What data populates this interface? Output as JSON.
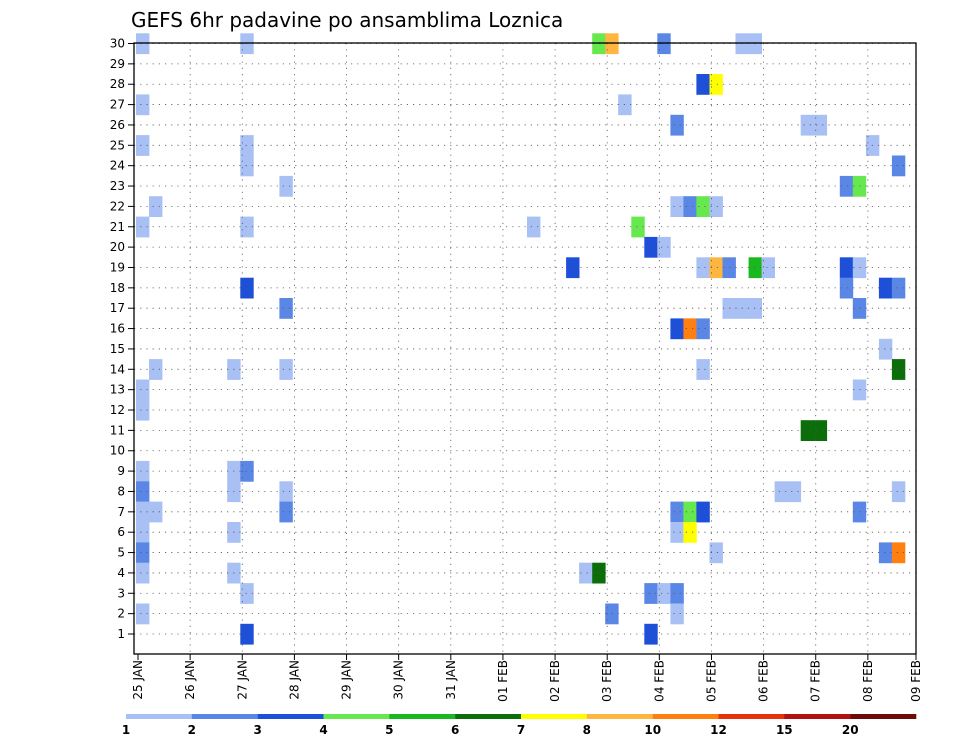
{
  "chart_data": {
    "type": "heatmap",
    "title": "GEFS 6hr padavine po ansamblima Loznica",
    "xlabel": "",
    "ylabel": "",
    "x_tick_labels": [
      "25 JAN",
      "26 JAN",
      "27 JAN",
      "28 JAN",
      "29 JAN",
      "30 JAN",
      "31 JAN",
      "01 FEB",
      "02 FEB",
      "03 FEB",
      "04 FEB",
      "05 FEB",
      "06 FEB",
      "07 FEB",
      "08 FEB",
      "09 FEB"
    ],
    "x_range_days": [
      0,
      15
    ],
    "x_step_hours": 6,
    "y_tick_labels": [
      "1",
      "2",
      "3",
      "4",
      "5",
      "6",
      "7",
      "8",
      "9",
      "10",
      "11",
      "12",
      "13",
      "14",
      "15",
      "16",
      "17",
      "18",
      "19",
      "20",
      "21",
      "22",
      "23",
      "24",
      "25",
      "26",
      "27",
      "28",
      "29",
      "30"
    ],
    "y_range": [
      1,
      30
    ],
    "grid": true,
    "colorbar": {
      "labels": [
        "1",
        "2",
        "3",
        "4",
        "5",
        "6",
        "7",
        "8",
        "10",
        "12",
        "15",
        "20"
      ],
      "colors": [
        "#a8c0f4",
        "#5a87e6",
        "#1d4fd8",
        "#66e84e",
        "#19b81f",
        "#0b6e0b",
        "#ffff00",
        "#ffb640",
        "#ff7f10",
        "#e8320a",
        "#b41010",
        "#6e0b0b"
      ]
    },
    "cells": [
      {
        "t": 1,
        "m": 30,
        "v": 1
      },
      {
        "t": 9,
        "m": 30,
        "v": 1
      },
      {
        "t": 36,
        "m": 30,
        "v": 4
      },
      {
        "t": 37,
        "m": 30,
        "v": 8
      },
      {
        "t": 41,
        "m": 30,
        "v": 2
      },
      {
        "t": 47,
        "m": 30,
        "v": 1
      },
      {
        "t": 48,
        "m": 30,
        "v": 1
      },
      {
        "t": 44,
        "m": 28,
        "v": 3
      },
      {
        "t": 45,
        "m": 28,
        "v": 7
      },
      {
        "t": 1,
        "m": 27,
        "v": 1
      },
      {
        "t": 38,
        "m": 27,
        "v": 1
      },
      {
        "t": 42,
        "m": 26,
        "v": 2
      },
      {
        "t": 52,
        "m": 26,
        "v": 1
      },
      {
        "t": 53,
        "m": 26,
        "v": 1
      },
      {
        "t": 1,
        "m": 25,
        "v": 1
      },
      {
        "t": 9,
        "m": 25,
        "v": 1
      },
      {
        "t": 57,
        "m": 25,
        "v": 1
      },
      {
        "t": 9,
        "m": 24,
        "v": 1
      },
      {
        "t": 59,
        "m": 24,
        "v": 2
      },
      {
        "t": 12,
        "m": 23,
        "v": 1
      },
      {
        "t": 55,
        "m": 23,
        "v": 2
      },
      {
        "t": 56,
        "m": 23,
        "v": 4
      },
      {
        "t": 2,
        "m": 22,
        "v": 1
      },
      {
        "t": 42,
        "m": 22,
        "v": 1
      },
      {
        "t": 43,
        "m": 22,
        "v": 2
      },
      {
        "t": 44,
        "m": 22,
        "v": 4
      },
      {
        "t": 45,
        "m": 22,
        "v": 1
      },
      {
        "t": 1,
        "m": 21,
        "v": 1
      },
      {
        "t": 9,
        "m": 21,
        "v": 1
      },
      {
        "t": 31,
        "m": 21,
        "v": 1
      },
      {
        "t": 39,
        "m": 21,
        "v": 4
      },
      {
        "t": 40,
        "m": 20,
        "v": 3
      },
      {
        "t": 41,
        "m": 20,
        "v": 1
      },
      {
        "t": 34,
        "m": 19,
        "v": 3
      },
      {
        "t": 44,
        "m": 19,
        "v": 1
      },
      {
        "t": 45,
        "m": 19,
        "v": 8
      },
      {
        "t": 46,
        "m": 19,
        "v": 2
      },
      {
        "t": 48,
        "m": 19,
        "v": 5
      },
      {
        "t": 49,
        "m": 19,
        "v": 1
      },
      {
        "t": 55,
        "m": 19,
        "v": 3
      },
      {
        "t": 56,
        "m": 19,
        "v": 1
      },
      {
        "t": 9,
        "m": 18,
        "v": 3
      },
      {
        "t": 55,
        "m": 18,
        "v": 2
      },
      {
        "t": 58,
        "m": 18,
        "v": 3
      },
      {
        "t": 59,
        "m": 18,
        "v": 2
      },
      {
        "t": 12,
        "m": 17,
        "v": 2
      },
      {
        "t": 46,
        "m": 17,
        "v": 1
      },
      {
        "t": 47,
        "m": 17,
        "v": 1
      },
      {
        "t": 48,
        "m": 17,
        "v": 1
      },
      {
        "t": 56,
        "m": 17,
        "v": 2
      },
      {
        "t": 42,
        "m": 16,
        "v": 3
      },
      {
        "t": 43,
        "m": 16,
        "v": 10
      },
      {
        "t": 44,
        "m": 16,
        "v": 2
      },
      {
        "t": 58,
        "m": 15,
        "v": 1
      },
      {
        "t": 2,
        "m": 14,
        "v": 1
      },
      {
        "t": 8,
        "m": 14,
        "v": 1
      },
      {
        "t": 12,
        "m": 14,
        "v": 1
      },
      {
        "t": 44,
        "m": 14,
        "v": 1
      },
      {
        "t": 59,
        "m": 14,
        "v": 6
      },
      {
        "t": 1,
        "m": 13,
        "v": 1
      },
      {
        "t": 56,
        "m": 13,
        "v": 1
      },
      {
        "t": 1,
        "m": 12,
        "v": 1
      },
      {
        "t": 52,
        "m": 11,
        "v": 6
      },
      {
        "t": 53,
        "m": 11,
        "v": 6
      },
      {
        "t": 1,
        "m": 9,
        "v": 1
      },
      {
        "t": 8,
        "m": 9,
        "v": 1
      },
      {
        "t": 9,
        "m": 9,
        "v": 2
      },
      {
        "t": 1,
        "m": 8,
        "v": 2
      },
      {
        "t": 8,
        "m": 8,
        "v": 1
      },
      {
        "t": 12,
        "m": 8,
        "v": 1
      },
      {
        "t": 50,
        "m": 8,
        "v": 1
      },
      {
        "t": 51,
        "m": 8,
        "v": 1
      },
      {
        "t": 59,
        "m": 8,
        "v": 1
      },
      {
        "t": 1,
        "m": 7,
        "v": 1
      },
      {
        "t": 2,
        "m": 7,
        "v": 1
      },
      {
        "t": 12,
        "m": 7,
        "v": 2
      },
      {
        "t": 42,
        "m": 7,
        "v": 2
      },
      {
        "t": 43,
        "m": 7,
        "v": 4
      },
      {
        "t": 44,
        "m": 7,
        "v": 3
      },
      {
        "t": 56,
        "m": 7,
        "v": 2
      },
      {
        "t": 1,
        "m": 6,
        "v": 1
      },
      {
        "t": 8,
        "m": 6,
        "v": 1
      },
      {
        "t": 42,
        "m": 6,
        "v": 1
      },
      {
        "t": 43,
        "m": 6,
        "v": 7
      },
      {
        "t": 1,
        "m": 5,
        "v": 2
      },
      {
        "t": 45,
        "m": 5,
        "v": 1
      },
      {
        "t": 58,
        "m": 5,
        "v": 2
      },
      {
        "t": 59,
        "m": 5,
        "v": 10
      },
      {
        "t": 1,
        "m": 4,
        "v": 1
      },
      {
        "t": 8,
        "m": 4,
        "v": 1
      },
      {
        "t": 35,
        "m": 4,
        "v": 1
      },
      {
        "t": 36,
        "m": 4,
        "v": 6
      },
      {
        "t": 9,
        "m": 3,
        "v": 1
      },
      {
        "t": 40,
        "m": 3,
        "v": 2
      },
      {
        "t": 41,
        "m": 3,
        "v": 1
      },
      {
        "t": 42,
        "m": 3,
        "v": 2
      },
      {
        "t": 1,
        "m": 2,
        "v": 1
      },
      {
        "t": 37,
        "m": 2,
        "v": 2
      },
      {
        "t": 42,
        "m": 2,
        "v": 1
      },
      {
        "t": 9,
        "m": 1,
        "v": 3
      },
      {
        "t": 40,
        "m": 1,
        "v": 3
      }
    ]
  }
}
